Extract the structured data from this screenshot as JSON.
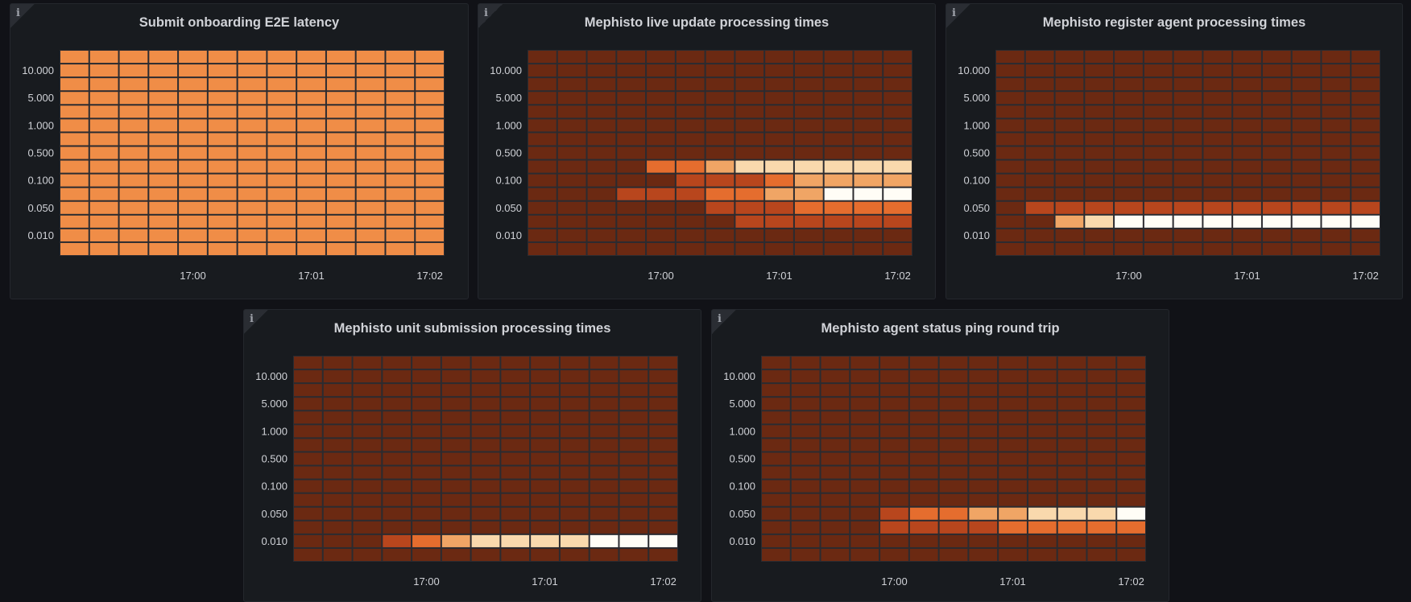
{
  "colors": {
    "page_bg": "#111217",
    "panel_bg": "#181b1f",
    "grid": "#2b2b30",
    "text": "#d0d2d7",
    "scale": [
      "#6b2912",
      "#b8461d",
      "#e56d2e",
      "#f0a565",
      "#f9d9ad",
      "#fffdf6"
    ],
    "uniform_cell": "#f08d47"
  },
  "info_icon": "info-icon",
  "chart_data": [
    {
      "type": "heatmap",
      "title": "Submit onboarding E2E latency",
      "y_tick_labels": [
        "10.000",
        "5.000",
        "1.000",
        "0.500",
        "0.100",
        "0.050",
        "0.010"
      ],
      "x_tick_labels": [
        "17:00",
        "17:01",
        "17:02"
      ],
      "rows": 15,
      "cols": 13,
      "uniform": true,
      "intensity": []
    },
    {
      "type": "heatmap",
      "title": "Mephisto live update processing times",
      "y_tick_labels": [
        "10.000",
        "5.000",
        "1.000",
        "0.500",
        "0.100",
        "0.050",
        "0.010"
      ],
      "x_tick_labels": [
        "17:00",
        "17:01",
        "17:02"
      ],
      "rows": 15,
      "cols": 13,
      "uniform": false,
      "intensity": [
        [
          0,
          0,
          0,
          0,
          0,
          0,
          0,
          0,
          0,
          0,
          0,
          0,
          0
        ],
        [
          0,
          0,
          0,
          0,
          0,
          0,
          0,
          0,
          0,
          0,
          0,
          0,
          0
        ],
        [
          0,
          0,
          0,
          0,
          0,
          0,
          0,
          0,
          0,
          0,
          0,
          0,
          0
        ],
        [
          0,
          0,
          0,
          0,
          0,
          0,
          0,
          0,
          0,
          0,
          0,
          0,
          0
        ],
        [
          0,
          0,
          0,
          0,
          0,
          0,
          0,
          0,
          0,
          0,
          0,
          0,
          0
        ],
        [
          0,
          0,
          0,
          0,
          0,
          0,
          0,
          0,
          0,
          0,
          0,
          0,
          0
        ],
        [
          0,
          0,
          0,
          0,
          0,
          0,
          0,
          0,
          0,
          0,
          0,
          0,
          0
        ],
        [
          0,
          0,
          0,
          0,
          0,
          0,
          0,
          0,
          0,
          0,
          0,
          0,
          0
        ],
        [
          0,
          0,
          0,
          0,
          2,
          2,
          3,
          4,
          4,
          4,
          4,
          4,
          4
        ],
        [
          0,
          0,
          0,
          0,
          0,
          1,
          1,
          1,
          2,
          3,
          3,
          3,
          3
        ],
        [
          0,
          0,
          0,
          1,
          1,
          1,
          2,
          2,
          3,
          3,
          5,
          5,
          5
        ],
        [
          0,
          0,
          0,
          0,
          0,
          0,
          1,
          1,
          1,
          2,
          2,
          2,
          2
        ],
        [
          0,
          0,
          0,
          0,
          0,
          0,
          0,
          1,
          1,
          1,
          1,
          1,
          1
        ],
        [
          0,
          0,
          0,
          0,
          0,
          0,
          0,
          0,
          0,
          0,
          0,
          0,
          0
        ],
        [
          0,
          0,
          0,
          0,
          0,
          0,
          0,
          0,
          0,
          0,
          0,
          0,
          0
        ]
      ]
    },
    {
      "type": "heatmap",
      "title": "Mephisto register agent processing times",
      "y_tick_labels": [
        "10.000",
        "5.000",
        "1.000",
        "0.500",
        "0.100",
        "0.050",
        "0.010"
      ],
      "x_tick_labels": [
        "17:00",
        "17:01",
        "17:02"
      ],
      "rows": 15,
      "cols": 13,
      "uniform": false,
      "intensity": [
        [
          0,
          0,
          0,
          0,
          0,
          0,
          0,
          0,
          0,
          0,
          0,
          0,
          0
        ],
        [
          0,
          0,
          0,
          0,
          0,
          0,
          0,
          0,
          0,
          0,
          0,
          0,
          0
        ],
        [
          0,
          0,
          0,
          0,
          0,
          0,
          0,
          0,
          0,
          0,
          0,
          0,
          0
        ],
        [
          0,
          0,
          0,
          0,
          0,
          0,
          0,
          0,
          0,
          0,
          0,
          0,
          0
        ],
        [
          0,
          0,
          0,
          0,
          0,
          0,
          0,
          0,
          0,
          0,
          0,
          0,
          0
        ],
        [
          0,
          0,
          0,
          0,
          0,
          0,
          0,
          0,
          0,
          0,
          0,
          0,
          0
        ],
        [
          0,
          0,
          0,
          0,
          0,
          0,
          0,
          0,
          0,
          0,
          0,
          0,
          0
        ],
        [
          0,
          0,
          0,
          0,
          0,
          0,
          0,
          0,
          0,
          0,
          0,
          0,
          0
        ],
        [
          0,
          0,
          0,
          0,
          0,
          0,
          0,
          0,
          0,
          0,
          0,
          0,
          0
        ],
        [
          0,
          0,
          0,
          0,
          0,
          0,
          0,
          0,
          0,
          0,
          0,
          0,
          0
        ],
        [
          0,
          0,
          0,
          0,
          0,
          0,
          0,
          0,
          0,
          0,
          0,
          0,
          0
        ],
        [
          0,
          1,
          1,
          1,
          1,
          1,
          1,
          1,
          1,
          1,
          1,
          1,
          1
        ],
        [
          0,
          0,
          3,
          4,
          5,
          5,
          5,
          5,
          5,
          5,
          5,
          5,
          5
        ],
        [
          0,
          0,
          0,
          0,
          0,
          0,
          0,
          0,
          0,
          0,
          0,
          0,
          0
        ],
        [
          0,
          0,
          0,
          0,
          0,
          0,
          0,
          0,
          0,
          0,
          0,
          0,
          0
        ]
      ]
    },
    {
      "type": "heatmap",
      "title": "Mephisto unit submission processing times",
      "y_tick_labels": [
        "10.000",
        "5.000",
        "1.000",
        "0.500",
        "0.100",
        "0.050",
        "0.010"
      ],
      "x_tick_labels": [
        "17:00",
        "17:01",
        "17:02"
      ],
      "rows": 15,
      "cols": 13,
      "uniform": false,
      "intensity": [
        [
          0,
          0,
          0,
          0,
          0,
          0,
          0,
          0,
          0,
          0,
          0,
          0,
          0
        ],
        [
          0,
          0,
          0,
          0,
          0,
          0,
          0,
          0,
          0,
          0,
          0,
          0,
          0
        ],
        [
          0,
          0,
          0,
          0,
          0,
          0,
          0,
          0,
          0,
          0,
          0,
          0,
          0
        ],
        [
          0,
          0,
          0,
          0,
          0,
          0,
          0,
          0,
          0,
          0,
          0,
          0,
          0
        ],
        [
          0,
          0,
          0,
          0,
          0,
          0,
          0,
          0,
          0,
          0,
          0,
          0,
          0
        ],
        [
          0,
          0,
          0,
          0,
          0,
          0,
          0,
          0,
          0,
          0,
          0,
          0,
          0
        ],
        [
          0,
          0,
          0,
          0,
          0,
          0,
          0,
          0,
          0,
          0,
          0,
          0,
          0
        ],
        [
          0,
          0,
          0,
          0,
          0,
          0,
          0,
          0,
          0,
          0,
          0,
          0,
          0
        ],
        [
          0,
          0,
          0,
          0,
          0,
          0,
          0,
          0,
          0,
          0,
          0,
          0,
          0
        ],
        [
          0,
          0,
          0,
          0,
          0,
          0,
          0,
          0,
          0,
          0,
          0,
          0,
          0
        ],
        [
          0,
          0,
          0,
          0,
          0,
          0,
          0,
          0,
          0,
          0,
          0,
          0,
          0
        ],
        [
          0,
          0,
          0,
          0,
          0,
          0,
          0,
          0,
          0,
          0,
          0,
          0,
          0
        ],
        [
          0,
          0,
          0,
          0,
          0,
          0,
          0,
          0,
          0,
          0,
          0,
          0,
          0
        ],
        [
          0,
          0,
          0,
          1,
          2,
          3,
          4,
          4,
          4,
          4,
          5,
          5,
          5
        ],
        [
          0,
          0,
          0,
          0,
          0,
          0,
          0,
          0,
          0,
          0,
          0,
          0,
          0
        ]
      ]
    },
    {
      "type": "heatmap",
      "title": "Mephisto agent status ping round trip",
      "y_tick_labels": [
        "10.000",
        "5.000",
        "1.000",
        "0.500",
        "0.100",
        "0.050",
        "0.010"
      ],
      "x_tick_labels": [
        "17:00",
        "17:01",
        "17:02"
      ],
      "rows": 15,
      "cols": 13,
      "uniform": false,
      "intensity": [
        [
          0,
          0,
          0,
          0,
          0,
          0,
          0,
          0,
          0,
          0,
          0,
          0,
          0
        ],
        [
          0,
          0,
          0,
          0,
          0,
          0,
          0,
          0,
          0,
          0,
          0,
          0,
          0
        ],
        [
          0,
          0,
          0,
          0,
          0,
          0,
          0,
          0,
          0,
          0,
          0,
          0,
          0
        ],
        [
          0,
          0,
          0,
          0,
          0,
          0,
          0,
          0,
          0,
          0,
          0,
          0,
          0
        ],
        [
          0,
          0,
          0,
          0,
          0,
          0,
          0,
          0,
          0,
          0,
          0,
          0,
          0
        ],
        [
          0,
          0,
          0,
          0,
          0,
          0,
          0,
          0,
          0,
          0,
          0,
          0,
          0
        ],
        [
          0,
          0,
          0,
          0,
          0,
          0,
          0,
          0,
          0,
          0,
          0,
          0,
          0
        ],
        [
          0,
          0,
          0,
          0,
          0,
          0,
          0,
          0,
          0,
          0,
          0,
          0,
          0
        ],
        [
          0,
          0,
          0,
          0,
          0,
          0,
          0,
          0,
          0,
          0,
          0,
          0,
          0
        ],
        [
          0,
          0,
          0,
          0,
          0,
          0,
          0,
          0,
          0,
          0,
          0,
          0,
          0
        ],
        [
          0,
          0,
          0,
          0,
          0,
          0,
          0,
          0,
          0,
          0,
          0,
          0,
          0
        ],
        [
          0,
          0,
          0,
          0,
          1,
          2,
          2,
          3,
          3,
          4,
          4,
          4,
          5
        ],
        [
          0,
          0,
          0,
          0,
          1,
          1,
          1,
          1,
          2,
          2,
          2,
          2,
          2
        ],
        [
          0,
          0,
          0,
          0,
          0,
          0,
          0,
          0,
          0,
          0,
          0,
          0,
          0
        ],
        [
          0,
          0,
          0,
          0,
          0,
          0,
          0,
          0,
          0,
          0,
          0,
          0,
          0
        ]
      ]
    }
  ]
}
